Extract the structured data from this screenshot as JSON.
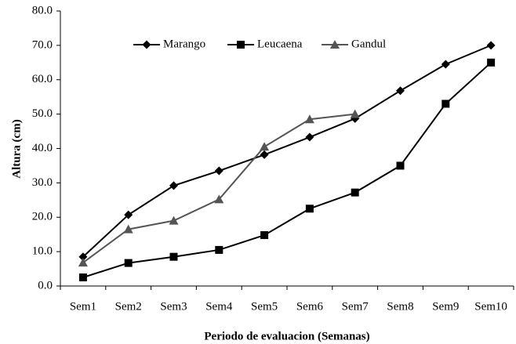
{
  "chart_data": {
    "type": "line",
    "xlabel": "Periodo de evaluacion (Semanas)",
    "ylabel": "Altura (cm)",
    "categories": [
      "Sem1",
      "Sem2",
      "Sem3",
      "Sem4",
      "Sem5",
      "Sem6",
      "Sem7",
      "Sem8",
      "Sem9",
      "Sem10"
    ],
    "series": [
      {
        "name": "Marango",
        "color": "#000000",
        "marker": "diamond",
        "values": [
          8.5,
          20.7,
          29.2,
          33.5,
          38.2,
          43.3,
          48.7,
          56.8,
          64.5,
          70.0
        ]
      },
      {
        "name": "Leucaena",
        "color": "#000000",
        "marker": "square",
        "values": [
          2.5,
          6.7,
          8.5,
          10.5,
          14.8,
          22.5,
          27.2,
          35.0,
          53.0,
          65.0
        ]
      },
      {
        "name": "Gandul",
        "color": "#555555",
        "marker": "triangle",
        "values": [
          6.8,
          16.5,
          19.0,
          25.2,
          40.5,
          48.5,
          50.0,
          null,
          null,
          null
        ]
      }
    ],
    "ylim": [
      0,
      80
    ],
    "yticks": [
      {
        "value": 0,
        "label": "0.0"
      },
      {
        "value": 10,
        "label": "10.0"
      },
      {
        "value": 20,
        "label": "20.0"
      },
      {
        "value": 30,
        "label": "30.0"
      },
      {
        "value": 40,
        "label": "40.0"
      },
      {
        "value": 50,
        "label": "50.0"
      },
      {
        "value": 60,
        "label": "60.0"
      },
      {
        "value": 70,
        "label": "70.0"
      },
      {
        "value": 80,
        "label": "80.0"
      }
    ],
    "legend": "top",
    "grid": false
  }
}
